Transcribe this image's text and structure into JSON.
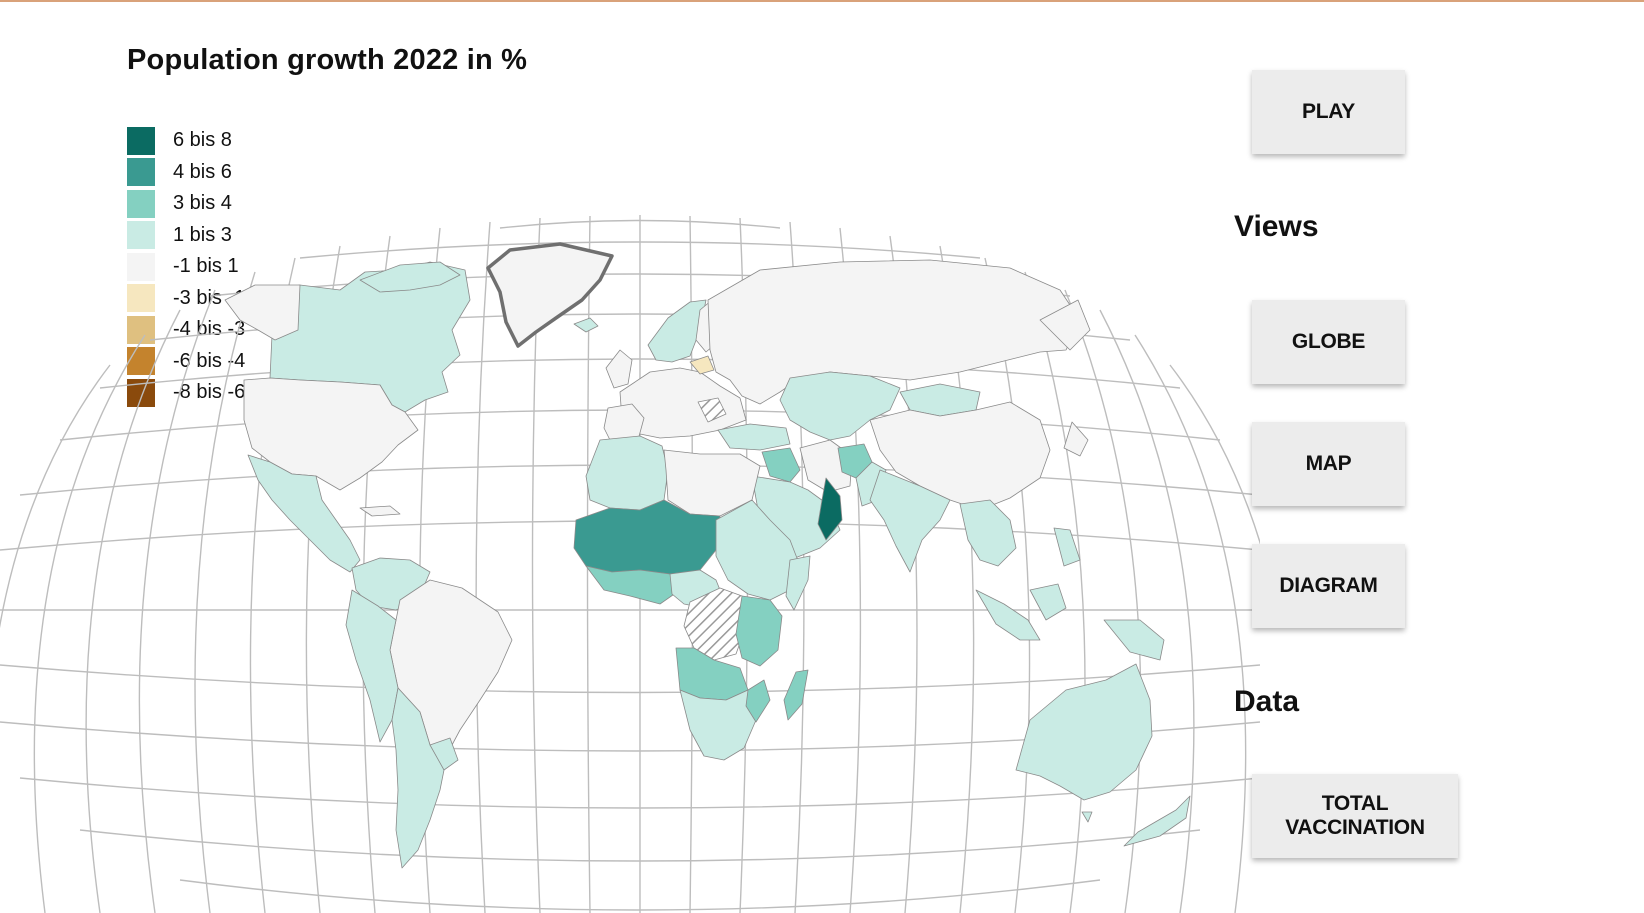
{
  "title": "Population growth 2022 in %",
  "legend": [
    {
      "label": "6 bis 8",
      "color": "#0b6b62"
    },
    {
      "label": "4 bis 6",
      "color": "#3a9a91"
    },
    {
      "label": "3 bis 4",
      "color": "#84d0c1"
    },
    {
      "label": "1 bis 3",
      "color": "#c9ebe4"
    },
    {
      "label": "-1 bis 1",
      "color": "#f4f4f4"
    },
    {
      "label": "-3 bis -1",
      "color": "#f6e7bf"
    },
    {
      "label": "-4 bis -3",
      "color": "#dfc080"
    },
    {
      "label": "-6 bis -4",
      "color": "#c4832d"
    },
    {
      "label": "-8 bis -6",
      "color": "#8a4a0c"
    }
  ],
  "controls": {
    "play": "PLAY",
    "views_heading": "Views",
    "views": [
      "GLOBE",
      "MAP",
      "DIAGRAM"
    ],
    "data_heading": "Data",
    "data": [
      "TOTAL VACCINATION"
    ]
  },
  "map": {
    "projection": "robinson-like world map",
    "no_data_pattern": "hatched",
    "highlighted_outline": "Greenland",
    "regions": [
      {
        "name": "Canada",
        "class": "1 bis 3"
      },
      {
        "name": "Greenland",
        "class": "-1 bis 1"
      },
      {
        "name": "United States",
        "class": "-1 bis 1"
      },
      {
        "name": "Mexico & Central America",
        "class": "1 bis 3"
      },
      {
        "name": "Brazil",
        "class": "-1 bis 1"
      },
      {
        "name": "Andean South America",
        "class": "1 bis 3"
      },
      {
        "name": "Europe",
        "class": "-1 bis 1"
      },
      {
        "name": "Belarus",
        "class": "-3 bis -1"
      },
      {
        "name": "Russia",
        "class": "-1 bis 1"
      },
      {
        "name": "Central Asia",
        "class": "1 bis 3"
      },
      {
        "name": "China",
        "class": "-1 bis 1"
      },
      {
        "name": "Mongolia",
        "class": "1 bis 3"
      },
      {
        "name": "India",
        "class": "1 bis 3"
      },
      {
        "name": "Afghanistan",
        "class": "3 bis 4"
      },
      {
        "name": "Iraq",
        "class": "3 bis 4"
      },
      {
        "name": "Oman",
        "class": "6 bis 8"
      },
      {
        "name": "Arabian Peninsula",
        "class": "1 bis 3"
      },
      {
        "name": "North Africa",
        "class": "1 bis 3"
      },
      {
        "name": "Libya & Egypt",
        "class": "-1 bis 1"
      },
      {
        "name": "Sahel & West Africa",
        "class": "4 bis 6"
      },
      {
        "name": "Central & East Africa",
        "class": "3 bis 4"
      },
      {
        "name": "DR Congo",
        "class": "no data"
      },
      {
        "name": "Southern Africa",
        "class": "1 bis 3"
      },
      {
        "name": "Madagascar",
        "class": "3 bis 4"
      },
      {
        "name": "Southeast Asia",
        "class": "1 bis 3"
      },
      {
        "name": "Australia",
        "class": "1 bis 3"
      }
    ]
  }
}
